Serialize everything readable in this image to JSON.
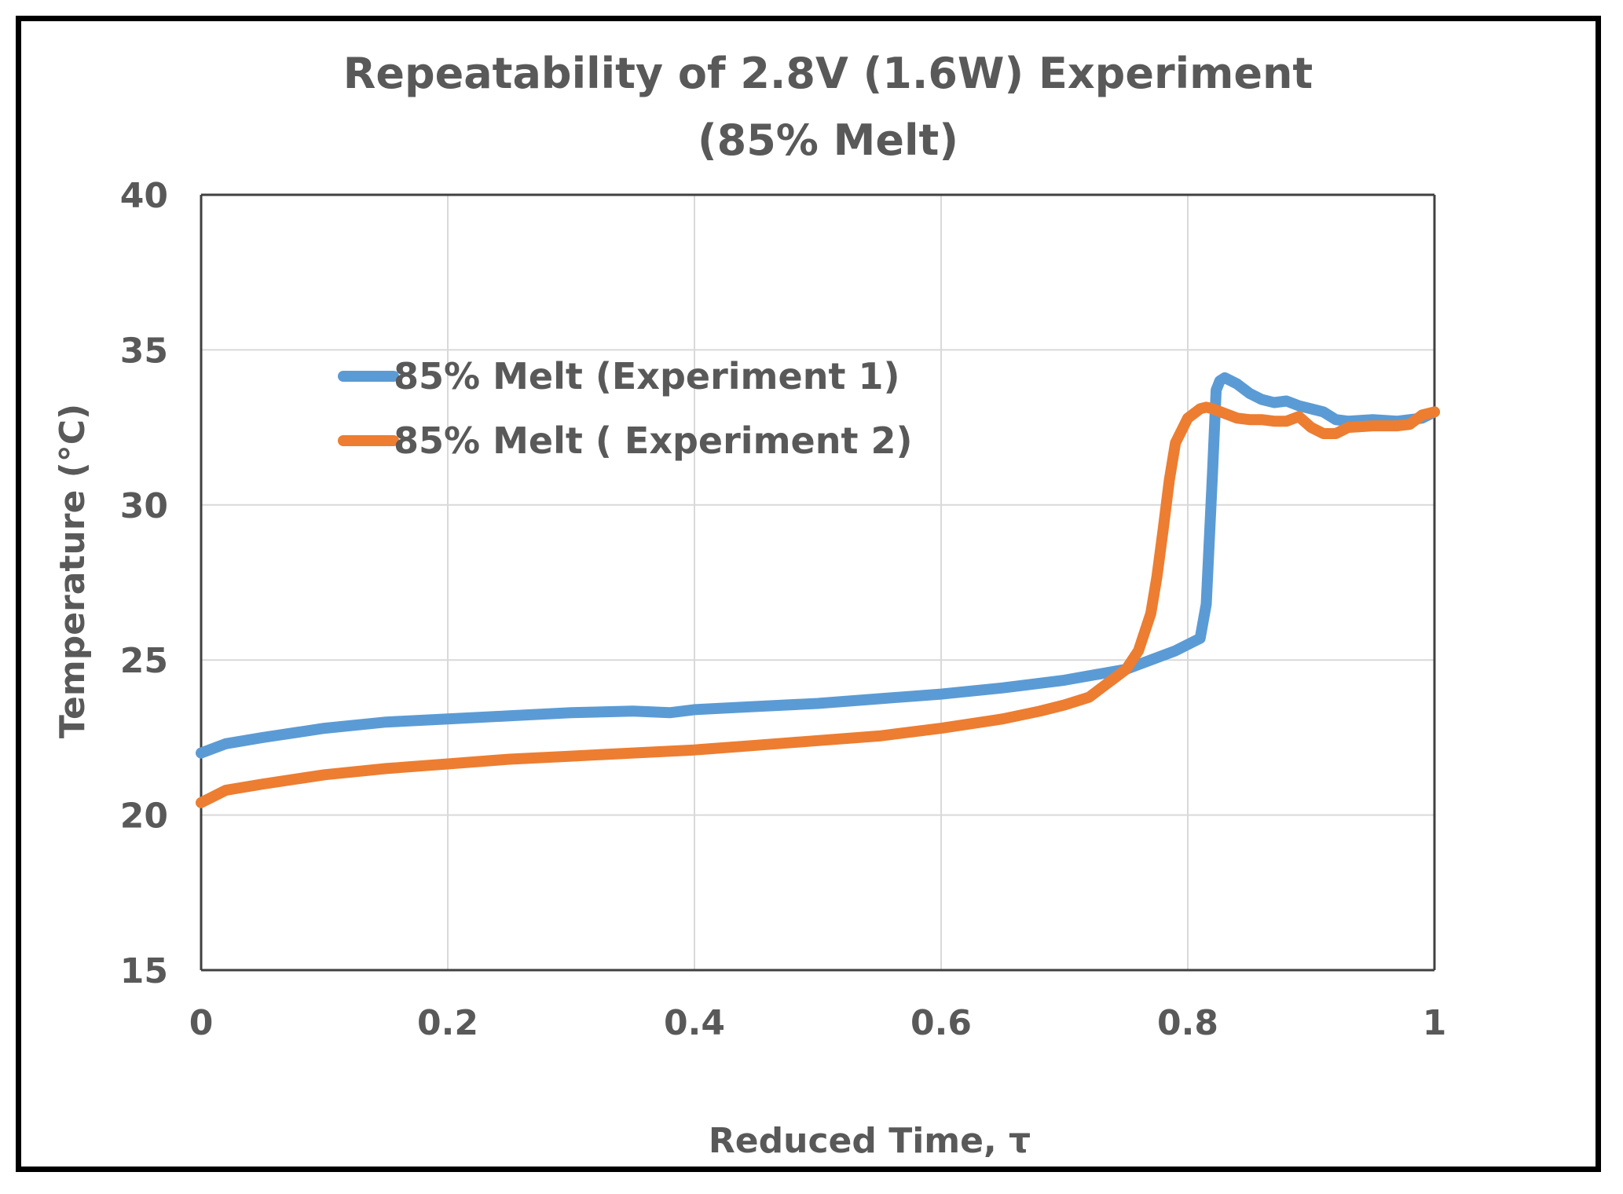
{
  "chart_data": {
    "type": "line",
    "title": "Repeatability of 2.8V (1.6W) Experiment",
    "subtitle": "(85% Melt)",
    "xlabel": "Reduced Time, τ",
    "ylabel": "Temperature (°C)",
    "xlim": [
      0,
      1
    ],
    "ylim": [
      15,
      40
    ],
    "x_ticks": [
      0,
      0.2,
      0.4,
      0.6,
      0.8,
      1
    ],
    "x_tick_labels": [
      "0",
      "0.2",
      "0.4",
      "0.6",
      "0.8",
      "1"
    ],
    "y_ticks": [
      15,
      20,
      25,
      30,
      35,
      40
    ],
    "y_tick_labels": [
      "15",
      "20",
      "25",
      "30",
      "35",
      "40"
    ],
    "grid": true,
    "legend_position": "upper-left",
    "series": [
      {
        "name": "85% Melt (Experiment 1)",
        "color": "#5b9bd5",
        "x": [
          0,
          0.02,
          0.05,
          0.1,
          0.15,
          0.2,
          0.25,
          0.3,
          0.35,
          0.38,
          0.4,
          0.45,
          0.5,
          0.55,
          0.6,
          0.65,
          0.7,
          0.75,
          0.77,
          0.79,
          0.81,
          0.815,
          0.82,
          0.823,
          0.826,
          0.83,
          0.84,
          0.85,
          0.86,
          0.87,
          0.88,
          0.89,
          0.9,
          0.91,
          0.92,
          0.93,
          0.95,
          0.97,
          0.99,
          1.0
        ],
        "y": [
          22.0,
          22.3,
          22.5,
          22.8,
          23.0,
          23.1,
          23.2,
          23.3,
          23.35,
          23.3,
          23.4,
          23.5,
          23.6,
          23.75,
          23.9,
          24.1,
          24.35,
          24.7,
          25.0,
          25.3,
          25.7,
          26.8,
          31.0,
          33.7,
          34.0,
          34.1,
          33.9,
          33.6,
          33.4,
          33.3,
          33.35,
          33.2,
          33.1,
          33.0,
          32.75,
          32.7,
          32.75,
          32.7,
          32.8,
          33.0
        ]
      },
      {
        "name": "85% Melt ( Experiment 2)",
        "color": "#ed7d31",
        "x": [
          0,
          0.02,
          0.05,
          0.1,
          0.15,
          0.2,
          0.25,
          0.3,
          0.35,
          0.4,
          0.45,
          0.5,
          0.55,
          0.6,
          0.65,
          0.68,
          0.7,
          0.72,
          0.73,
          0.74,
          0.75,
          0.76,
          0.77,
          0.775,
          0.78,
          0.785,
          0.79,
          0.8,
          0.81,
          0.815,
          0.82,
          0.83,
          0.84,
          0.85,
          0.86,
          0.87,
          0.88,
          0.89,
          0.9,
          0.91,
          0.92,
          0.93,
          0.95,
          0.97,
          0.98,
          0.99,
          1.0
        ],
        "y": [
          20.4,
          20.8,
          21.0,
          21.3,
          21.5,
          21.65,
          21.8,
          21.9,
          22.0,
          22.1,
          22.25,
          22.4,
          22.55,
          22.8,
          23.1,
          23.35,
          23.55,
          23.8,
          24.1,
          24.4,
          24.7,
          25.3,
          26.5,
          27.7,
          29.2,
          30.8,
          32.0,
          32.8,
          33.1,
          33.15,
          33.1,
          32.95,
          32.8,
          32.75,
          32.75,
          32.7,
          32.7,
          32.85,
          32.5,
          32.3,
          32.3,
          32.5,
          32.55,
          32.55,
          32.6,
          32.9,
          33.0
        ]
      }
    ]
  }
}
